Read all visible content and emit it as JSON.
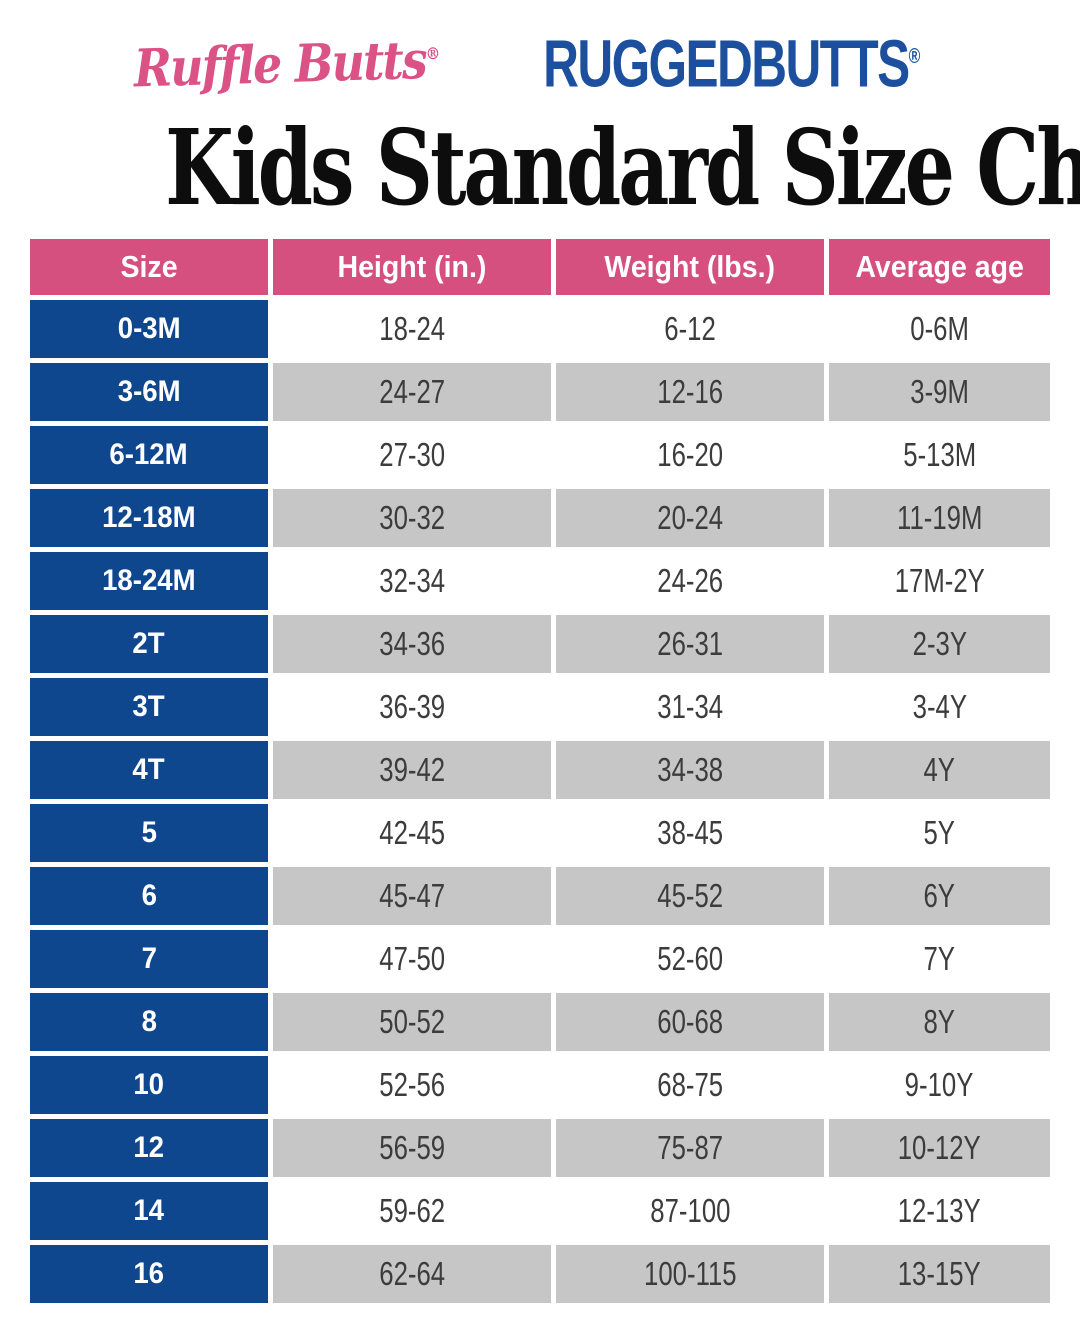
{
  "logos": {
    "rufflebutts": {
      "text": "Ruffle Butts",
      "registered": "®",
      "color": "#da5286"
    },
    "ruggedbutts": {
      "text": "RUGGEDBUTTS",
      "registered": "®",
      "color": "#1d4f9f"
    }
  },
  "title": "Kids Standard Size Chart",
  "colors": {
    "header_bg": "#d5507e",
    "size_column_bg": "#0f478f",
    "alt_row_bg": "#c6c6c6",
    "row_bg": "#ffffff",
    "data_text": "#3c3c3c",
    "header_text": "#ffffff"
  },
  "chart_data": {
    "type": "table",
    "title": "Kids Standard Size Chart",
    "columns": [
      "Size",
      "Height (in.)",
      "Weight (lbs.)",
      "Average age"
    ],
    "rows": [
      [
        "0-3M",
        "18-24",
        "6-12",
        "0-6M"
      ],
      [
        "3-6M",
        "24-27",
        "12-16",
        "3-9M"
      ],
      [
        "6-12M",
        "27-30",
        "16-20",
        "5-13M"
      ],
      [
        "12-18M",
        "30-32",
        "20-24",
        "11-19M"
      ],
      [
        "18-24M",
        "32-34",
        "24-26",
        "17M-2Y"
      ],
      [
        "2T",
        "34-36",
        "26-31",
        "2-3Y"
      ],
      [
        "3T",
        "36-39",
        "31-34",
        "3-4Y"
      ],
      [
        "4T",
        "39-42",
        "34-38",
        "4Y"
      ],
      [
        "5",
        "42-45",
        "38-45",
        "5Y"
      ],
      [
        "6",
        "45-47",
        "45-52",
        "6Y"
      ],
      [
        "7",
        "47-50",
        "52-60",
        "7Y"
      ],
      [
        "8",
        "50-52",
        "60-68",
        "8Y"
      ],
      [
        "10",
        "52-56",
        "68-75",
        "9-10Y"
      ],
      [
        "12",
        "56-59",
        "75-87",
        "10-12Y"
      ],
      [
        "14",
        "59-62",
        "87-100",
        "12-13Y"
      ],
      [
        "16",
        "62-64",
        "100-115",
        "13-15Y"
      ]
    ],
    "layout_hints": "Size column always blue with white bold text; data cells alternate white/gray per row starting white; 5px white gutters between all cells"
  }
}
